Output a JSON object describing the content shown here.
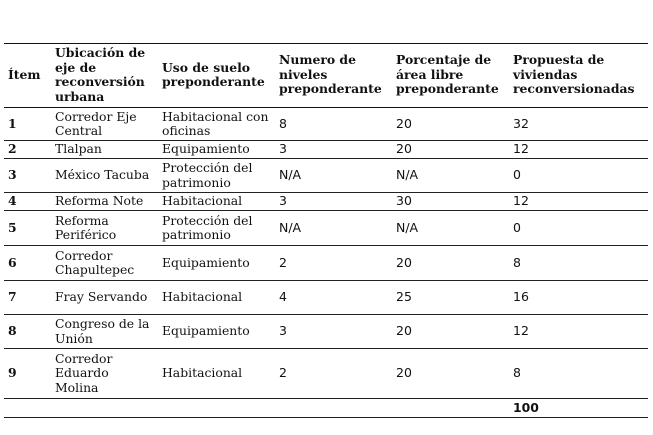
{
  "table": {
    "headers": [
      "Ítem",
      "Ubicación de eje de reconversión urbana",
      "Uso de suelo preponderante",
      "Numero de niveles preponderante",
      "Porcentaje de área libre preponderante",
      "Propuesta de viviendas reconversionadas"
    ],
    "rows": [
      [
        "1",
        "Corredor Eje Central",
        "Habitacional con oficinas",
        "8",
        "20",
        "32"
      ],
      [
        "2",
        "Tlalpan",
        "Equipamiento",
        "3",
        "20",
        "12"
      ],
      [
        "3",
        "México Tacuba",
        "Protección del patrimonio",
        "N/A",
        "N/A",
        "0"
      ],
      [
        "4",
        "Reforma Note",
        "Habitacional",
        "3",
        "30",
        "12"
      ],
      [
        "5",
        "Reforma Periférico",
        "Protección del patrimonio",
        "N/A",
        "N/A",
        "0"
      ],
      [
        "6",
        "Corredor Chapultepec",
        "Equipamiento",
        "2",
        "20",
        "8"
      ],
      [
        "7",
        "Fray Servando",
        "Habitacional",
        "4",
        "25",
        "16"
      ],
      [
        "8",
        "Congreso de la Unión",
        "Equipamiento",
        "3",
        "20",
        "12"
      ],
      [
        "9",
        "Corredor Eduardo Molina",
        "Habitacional",
        "2",
        "20",
        "8"
      ]
    ],
    "total": "100"
  }
}
